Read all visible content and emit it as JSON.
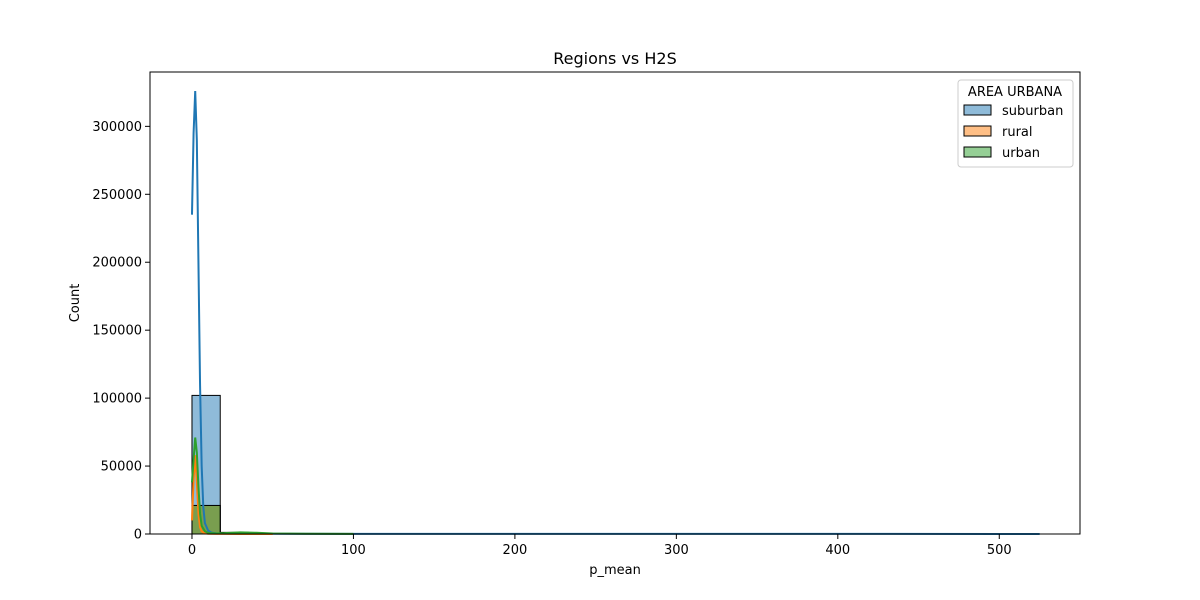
{
  "chart_data": {
    "type": "histogram",
    "title": "Regions vs H2S",
    "xlabel": "p_mean",
    "ylabel": "Count",
    "xlim": [
      -26,
      550
    ],
    "ylim": [
      0,
      340000
    ],
    "xticks": [
      0,
      100,
      200,
      300,
      400,
      500
    ],
    "yticks": [
      0,
      50000,
      100000,
      150000,
      200000,
      250000,
      300000
    ],
    "grid": false,
    "bin_edges": [
      0,
      17.5,
      35,
      52.5,
      70,
      87.5,
      105,
      122.5,
      140,
      157.5,
      175,
      192.5,
      210,
      227.5,
      245,
      262.5,
      280,
      297.5,
      315,
      332.5,
      350,
      367.5,
      385,
      402.5,
      420,
      437.5,
      455,
      472.5,
      490,
      507.5,
      525
    ],
    "legend": {
      "title": "AREA URBANA",
      "position": "upper right",
      "entries": [
        "suburban",
        "rural",
        "urban"
      ]
    },
    "series": [
      {
        "name": "suburban",
        "color": "#1f77b4",
        "counts": [
          102000,
          300,
          100,
          50,
          30,
          20,
          10,
          10,
          10,
          5,
          5,
          5,
          5,
          5,
          5,
          5,
          5,
          5,
          5,
          5,
          5,
          5,
          5,
          5,
          5,
          5,
          5,
          5,
          5,
          5
        ],
        "kde": {
          "x": [
            0,
            1,
            2,
            3,
            4,
            5,
            6,
            7,
            8,
            10,
            12,
            15,
            20,
            30,
            50,
            100,
            200,
            300,
            400,
            500,
            525
          ],
          "y": [
            235000,
            295000,
            326000,
            290000,
            200000,
            110000,
            50000,
            20000,
            8000,
            2500,
            1000,
            500,
            300,
            200,
            150,
            100,
            80,
            60,
            50,
            40,
            30
          ]
        }
      },
      {
        "name": "rural",
        "color": "#ff7f0e",
        "counts": [
          21000,
          200,
          50,
          20,
          10,
          5,
          5,
          5,
          0,
          0,
          0,
          0,
          0,
          0,
          0,
          0,
          0,
          0,
          0,
          0,
          0,
          0,
          0,
          0,
          0,
          0,
          0,
          0,
          0,
          0
        ],
        "kde": {
          "x": [
            0,
            1,
            2,
            3,
            4,
            5,
            6,
            8,
            10,
            15,
            20,
            30,
            50
          ],
          "y": [
            10000,
            40000,
            58000,
            38000,
            15000,
            5000,
            2000,
            500,
            200,
            100,
            50,
            20,
            0
          ]
        }
      },
      {
        "name": "urban",
        "color": "#2ca02c",
        "counts": [
          21000,
          1200,
          300,
          100,
          50,
          20,
          10,
          5,
          5,
          0,
          0,
          0,
          0,
          0,
          0,
          0,
          0,
          0,
          0,
          0,
          0,
          0,
          0,
          0,
          0,
          0,
          0,
          0,
          0,
          0
        ],
        "kde": {
          "x": [
            0,
            1,
            2,
            3,
            4,
            5,
            6,
            8,
            10,
            15,
            20,
            30,
            40,
            50,
            70,
            100
          ],
          "y": [
            38000,
            55000,
            71000,
            60000,
            35000,
            15000,
            6000,
            2000,
            800,
            500,
            600,
            1200,
            900,
            400,
            150,
            50
          ]
        }
      }
    ]
  }
}
